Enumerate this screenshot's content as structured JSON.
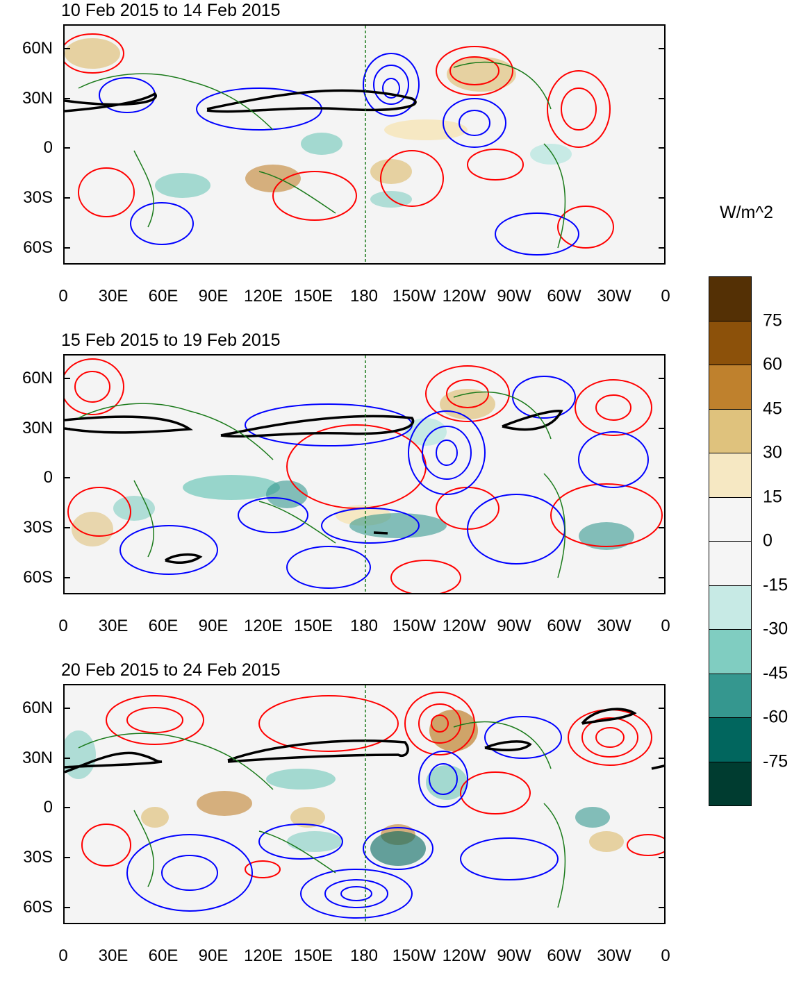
{
  "units": "W/m^2",
  "colorbar": {
    "labels": [
      "75",
      "60",
      "45",
      "30",
      "15",
      "0",
      "-15",
      "-30",
      "-45",
      "-60",
      "-75"
    ],
    "colors": [
      "#543005",
      "#8c510a",
      "#bf812d",
      "#dfc27d",
      "#f6e8c3",
      "#f5f5f5",
      "#f5f5f5",
      "#c7eae5",
      "#80cdc1",
      "#35978f",
      "#01665e",
      "#003c30"
    ]
  },
  "axes": {
    "lat_labels": [
      "60N",
      "30N",
      "0",
      "30S",
      "60S"
    ],
    "lon_labels": [
      "0",
      "30E",
      "60E",
      "90E",
      "120E",
      "150E",
      "180",
      "150W",
      "120W",
      "90W",
      "60W",
      "30W",
      "0"
    ]
  },
  "panels": [
    {
      "title": "10 Feb 2015 to 14 Feb 2015"
    },
    {
      "title": "15 Feb 2015 to 19 Feb 2015"
    },
    {
      "title": "20 Feb 2015 to 24 Feb 2015"
    }
  ],
  "colors": {
    "positive_contour": "#ff0000",
    "negative_contour": "#0000ff",
    "zero_contour": "#000000",
    "coastline": "#1a7a1a",
    "dateline": "#1a7a1a"
  }
}
